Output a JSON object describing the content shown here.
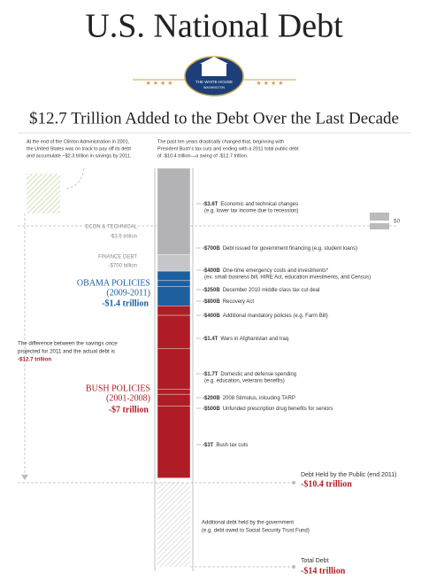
{
  "header": {
    "title": "U.S. National Debt",
    "seal_top": "THE WHITE HOUSE",
    "seal_bottom": "WASHINGTON",
    "subtitle": "$12.7 Trillion Added to the Debt Over the Last Decade"
  },
  "intro_left": [
    "At the end of the Clinton Administration in 2001,",
    "the United States was on track to pay off its debt",
    "and accumulate ~$2.3 trillion in savings by 2011."
  ],
  "intro_right": [
    "The past ten years drastically changed that, beginning with",
    "President Bush's tax cuts and ending with a 2011 total public debt",
    "of -$10.4 trillion—a swing of -$12.7 trillion."
  ],
  "zero_label": "$0",
  "groups": {
    "econ": {
      "name": "ECON & TECHNICAL",
      "total": "-$3.6 trillion"
    },
    "finance": {
      "name": "FINANCE DEBT",
      "total": "-$700 billion"
    },
    "obama": {
      "name": "OBAMA POLICIES",
      "years": "(2009-2011)",
      "total": "-$1.4 trillion"
    },
    "bush": {
      "name": "BUSH POLICIES",
      "years": "(2001-2008)",
      "total": "-$7 trillion"
    }
  },
  "difference": [
    "The difference between the savings once",
    "projected for 2011 and the actual debt is",
    "-$12.7 trillion"
  ],
  "segments": [
    {
      "amount": "-$3.6T",
      "text": "Economic and technical changes",
      "note": "(e.g. lower tax income due to recession)",
      "value": -3.6,
      "color": "#b3b3b5"
    },
    {
      "amount": "-$700B",
      "text": "Debt issued for government financing (e.g. student loans)",
      "value": -0.7,
      "color": "#c6c6c8"
    },
    {
      "amount": "-$400B",
      "text": "One-time emergency costs and investments*",
      "note": "(ex. small business bill, HIRE Act, education investments, and Census)",
      "value": -0.4,
      "color": "#1e5fa0"
    },
    {
      "amount": "-$250B",
      "text": "December 2010 middle class tax cut deal",
      "value": -0.25,
      "color": "#1e5fa0"
    },
    {
      "amount": "-$800B",
      "text": "Recovery Act",
      "value": -0.8,
      "color": "#1e5fa0"
    },
    {
      "amount": "-$400B",
      "text": "Additional mandatory policies (e.g. Farm Bill)",
      "value": -0.4,
      "color": "#b01c25"
    },
    {
      "amount": "-$1.4T",
      "text": "Wars in Afghanistan and Iraq",
      "value": -1.4,
      "color": "#b01c25"
    },
    {
      "amount": "-$1.7T",
      "text": "Domestic and defense spending",
      "note": "(e.g. education, veterans benefits)",
      "value": -1.7,
      "color": "#b01c25"
    },
    {
      "amount": "-$200B",
      "text": "2008 Stimulus, inlcuding TARP",
      "value": -0.2,
      "color": "#b01c25"
    },
    {
      "amount": "-$500B",
      "text": "Unfunded prescription drug benefits for seniors",
      "value": -0.5,
      "color": "#b01c25"
    },
    {
      "amount": "-$3T",
      "text": "Bush tax cuts",
      "value": -3,
      "color": "#b01c25"
    }
  ],
  "public_debt": {
    "label": "Debt Held by the Public (end 2011)",
    "total": "-$10.4 trillion"
  },
  "additional": [
    "Additional debt held by the government",
    "(e.g. debt owed to Social Security Trust Fund)"
  ],
  "total_debt": {
    "label": "Total Debt",
    "total": "-$14 trillion"
  }
}
